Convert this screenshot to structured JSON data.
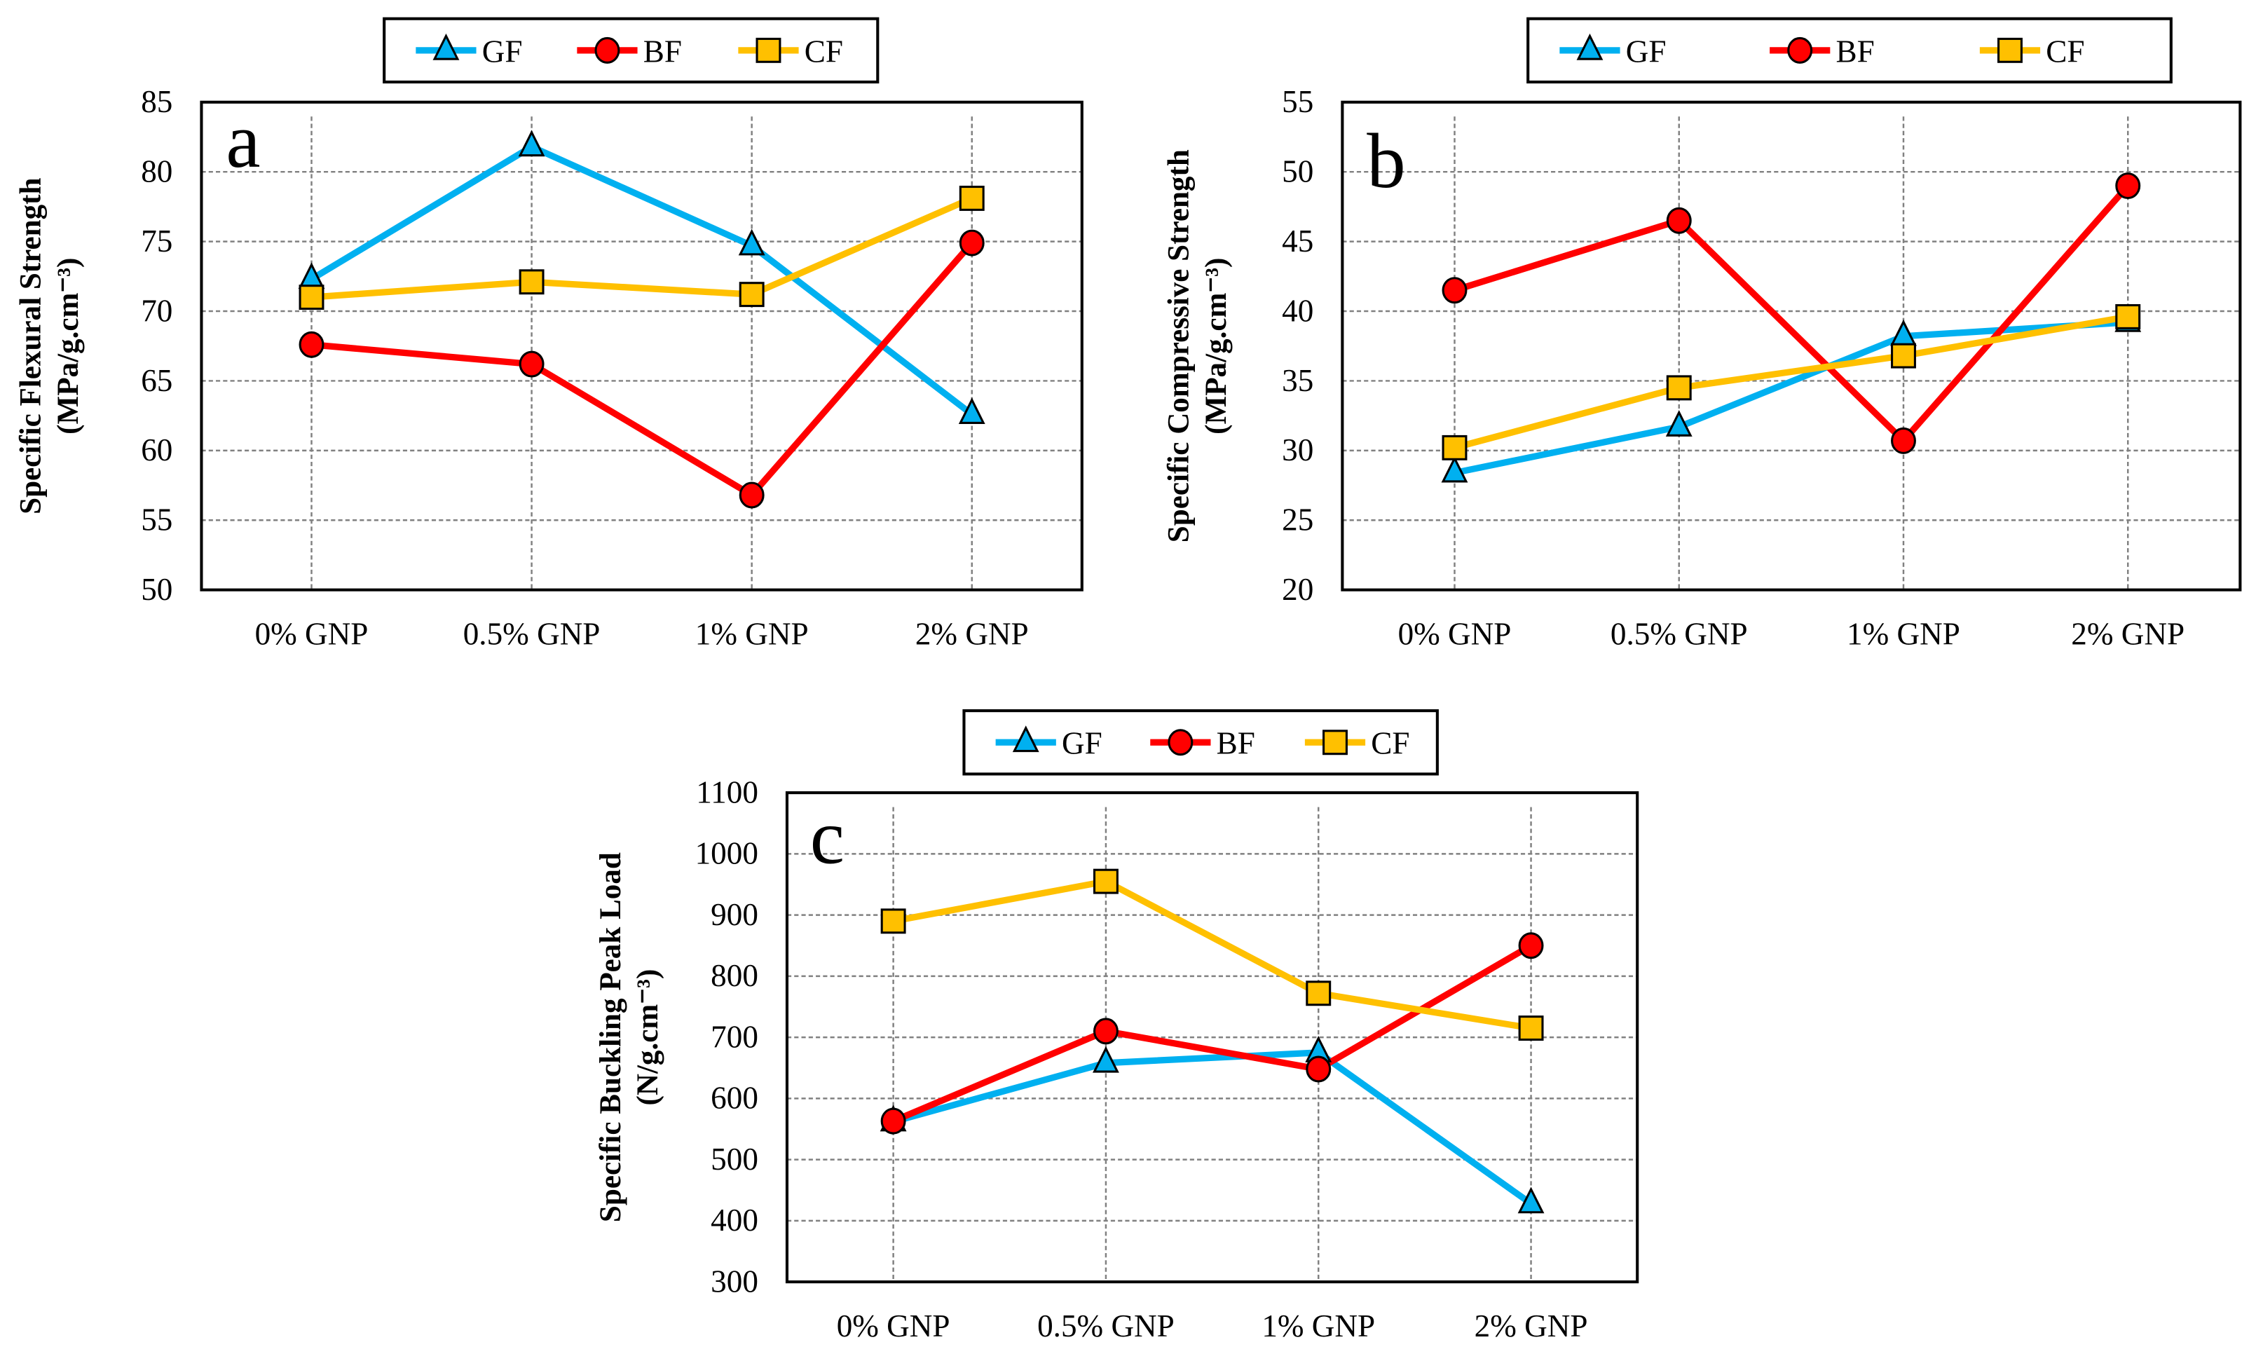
{
  "colors": {
    "GF": "#00b0f0",
    "BF": "#ff0000",
    "CF": "#ffc000",
    "grid": "#808080"
  },
  "chart_data": [
    {
      "type": "line",
      "panel_label": "a",
      "ylabel": [
        "Specific Flexural Strength",
        "(MPa/g.cm⁻³)"
      ],
      "categories": [
        "0% GNP",
        "0.5% GNP",
        "1% GNP",
        "2% GNP"
      ],
      "ylim": [
        50,
        85
      ],
      "ystep": 5,
      "grid": true,
      "legend": "top",
      "series": [
        {
          "name": "GF",
          "marker": "triangle",
          "values": [
            72.3,
            81.8,
            74.7,
            62.6
          ]
        },
        {
          "name": "BF",
          "marker": "circle",
          "values": [
            67.6,
            66.2,
            56.8,
            74.9
          ]
        },
        {
          "name": "CF",
          "marker": "square",
          "values": [
            71.0,
            72.1,
            71.2,
            78.1
          ]
        }
      ]
    },
    {
      "type": "line",
      "panel_label": "b",
      "ylabel": [
        "Specific Compressive Strength",
        "(MPa/g.cm⁻³)"
      ],
      "categories": [
        "0% GNP",
        "0.5% GNP",
        "1% GNP",
        "2% GNP"
      ],
      "ylim": [
        20,
        55
      ],
      "ystep": 5,
      "grid": true,
      "legend": "top",
      "series": [
        {
          "name": "GF",
          "marker": "triangle",
          "values": [
            28.4,
            31.7,
            38.2,
            39.2
          ]
        },
        {
          "name": "BF",
          "marker": "circle",
          "values": [
            41.5,
            46.5,
            30.7,
            49.0
          ]
        },
        {
          "name": "CF",
          "marker": "square",
          "values": [
            30.2,
            34.5,
            36.8,
            39.6
          ]
        }
      ]
    },
    {
      "type": "line",
      "panel_label": "c",
      "ylabel": [
        "Specific Buckling Peak Load",
        "(N/g.cm⁻³)"
      ],
      "categories": [
        "0% GNP",
        "0.5% GNP",
        "1% GNP",
        "2% GNP"
      ],
      "ylim": [
        300,
        1100
      ],
      "ystep": 100,
      "grid": true,
      "legend": "top",
      "series": [
        {
          "name": "GF",
          "marker": "triangle",
          "values": [
            562,
            658,
            675,
            428
          ]
        },
        {
          "name": "BF",
          "marker": "circle",
          "values": [
            563,
            710,
            648,
            850
          ]
        },
        {
          "name": "CF",
          "marker": "square",
          "values": [
            890,
            955,
            772,
            715
          ]
        }
      ]
    }
  ]
}
